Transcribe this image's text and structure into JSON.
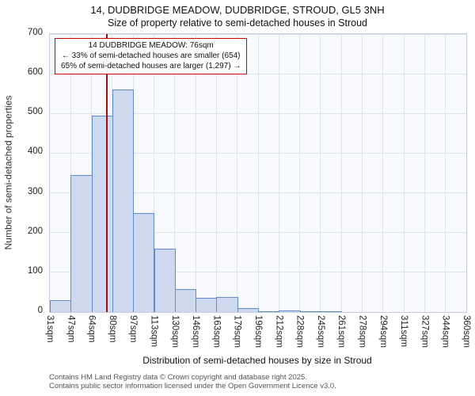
{
  "title": "14, DUDBRIDGE MEADOW, DUDBRIDGE, STROUD, GL5 3NH",
  "subtitle": "Size of property relative to semi-detached houses in Stroud",
  "chart_data": {
    "type": "bar",
    "bin_edges_sqm": [
      31,
      47,
      64,
      80,
      97,
      113,
      130,
      146,
      163,
      179,
      196,
      212,
      228,
      245,
      261,
      278,
      294,
      311,
      327,
      344,
      360
    ],
    "tick_labels": [
      "31sqm",
      "47sqm",
      "64sqm",
      "80sqm",
      "97sqm",
      "113sqm",
      "130sqm",
      "146sqm",
      "163sqm",
      "179sqm",
      "196sqm",
      "212sqm",
      "228sqm",
      "245sqm",
      "261sqm",
      "278sqm",
      "294sqm",
      "311sqm",
      "327sqm",
      "344sqm",
      "360sqm"
    ],
    "values": [
      30,
      345,
      495,
      560,
      250,
      160,
      58,
      35,
      37,
      10,
      3,
      5,
      3,
      2,
      0,
      0,
      0,
      0,
      0,
      0
    ],
    "yticks": [
      0,
      100,
      200,
      300,
      400,
      500,
      600,
      700
    ],
    "ylim": [
      0,
      700
    ],
    "ylabel": "Number of semi-detached properties",
    "xlabel": "Distribution of semi-detached houses by size in Stroud",
    "grid": true,
    "marker_sqm": 76,
    "bar_fill": "#ccd9ee",
    "bar_border": "#638cc7",
    "marker_color": "#991111",
    "annotation_border": "#cc0000"
  },
  "annotation": {
    "line1": "14 DUDBRIDGE MEADOW: 76sqm",
    "line2": "← 33% of semi-detached houses are smaller (654)",
    "line3": "65% of semi-detached houses are larger (1,297) →"
  },
  "footer": {
    "line1": "Contains HM Land Registry data © Crown copyright and database right 2025.",
    "line2": "Contains public sector information licensed under the Open Government Licence v3.0."
  }
}
